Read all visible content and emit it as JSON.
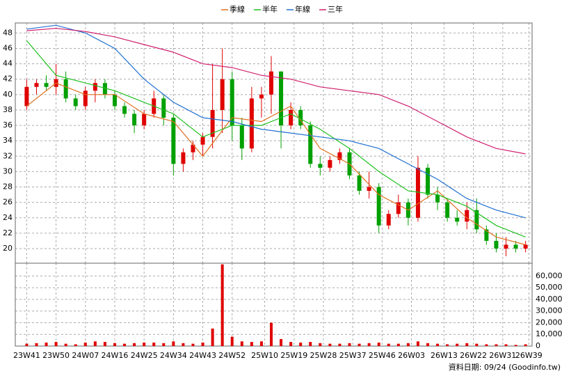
{
  "chart_data": [
    {
      "type": "candlestick",
      "x": [
        0,
        3,
        6,
        9,
        12,
        15,
        18,
        21,
        24,
        27,
        30,
        33,
        36,
        39,
        42,
        45,
        48,
        51,
        54,
        57,
        60,
        63,
        66,
        69,
        72,
        75,
        78,
        81,
        84,
        87,
        90,
        93,
        96,
        99,
        102,
        105,
        108,
        111,
        114,
        117,
        120,
        123,
        126,
        129,
        132,
        135,
        138,
        141,
        144,
        147,
        150,
        153
      ],
      "open": [
        38.5,
        41,
        41.5,
        41,
        42,
        39.5,
        38.5,
        40.5,
        41.5,
        40,
        38.5,
        37.5,
        36,
        37.5,
        39.5,
        37,
        31,
        32.5,
        33.5,
        34.5,
        38,
        42,
        36,
        33,
        39.5,
        40,
        43,
        36,
        38,
        36,
        31,
        30.5,
        31.5,
        32.5,
        29.5,
        27.5,
        28,
        23,
        24.5,
        26,
        24,
        30.5,
        27,
        26,
        24,
        23.5,
        25,
        22.5,
        21,
        20,
        20.5,
        20
      ],
      "high": [
        42,
        42,
        42.5,
        44,
        43,
        40,
        41,
        42,
        42,
        40.5,
        39,
        38,
        38,
        40.5,
        40,
        37.5,
        33,
        34,
        35,
        44,
        46,
        43,
        37,
        41,
        41,
        45,
        43,
        39,
        38.5,
        36.5,
        32,
        32,
        33,
        33,
        30,
        30,
        28.5,
        25,
        27,
        26.5,
        32,
        31,
        28,
        26.5,
        25,
        26,
        26.5,
        23,
        22,
        21.5,
        21,
        21
      ],
      "low": [
        38,
        40,
        40.5,
        40,
        39,
        38,
        38,
        39,
        39.5,
        38,
        37,
        35,
        35.5,
        37,
        36,
        29.5,
        30,
        31.5,
        32,
        33,
        35,
        34,
        31.5,
        32.5,
        37,
        37.5,
        33,
        35.5,
        35.5,
        30.5,
        29.5,
        30,
        31,
        29,
        27,
        26.5,
        22,
        22.5,
        24,
        23,
        23.5,
        26.5,
        25,
        23.5,
        23,
        22.5,
        22,
        20.5,
        19.5,
        19,
        19.5,
        19.5
      ],
      "close": [
        41,
        41.5,
        41,
        42,
        39.5,
        38.5,
        40.5,
        41.5,
        40,
        38.5,
        37.5,
        36,
        37.5,
        39.5,
        37,
        31,
        32.5,
        33.5,
        34.5,
        38,
        42,
        36,
        33,
        39.5,
        40,
        43,
        36,
        38,
        36,
        31,
        30.5,
        31.5,
        32.5,
        29.5,
        27.5,
        28,
        23,
        24.5,
        26,
        24,
        30.5,
        27,
        26,
        24,
        23.5,
        25,
        22.5,
        21,
        20,
        20.5,
        20,
        20.5
      ],
      "up_color": "#e00000",
      "down_color": "#00a000",
      "series": [
        {
          "name": "季線",
          "color": "#e07020",
          "x": [
            0,
            9,
            18,
            27,
            36,
            45,
            54,
            63,
            72,
            81,
            90,
            99,
            108,
            117,
            126,
            135,
            144,
            153
          ],
          "values": [
            38.5,
            41.5,
            40,
            40,
            37.5,
            36.5,
            32,
            37,
            36.5,
            38.5,
            33,
            31,
            27,
            25,
            27.5,
            24,
            21.5,
            20.5
          ]
        },
        {
          "name": "半年",
          "color": "#20c020",
          "x": [
            0,
            9,
            18,
            27,
            36,
            45,
            54,
            63,
            72,
            81,
            90,
            99,
            108,
            117,
            126,
            135,
            144,
            153
          ],
          "values": [
            47,
            42.5,
            41.5,
            40.5,
            39,
            37.5,
            34.5,
            36,
            36,
            37.5,
            35.5,
            33,
            30,
            27.5,
            27,
            25.5,
            23,
            21.5
          ]
        },
        {
          "name": "年線",
          "color": "#2070d0",
          "x": [
            0,
            9,
            18,
            27,
            36,
            45,
            54,
            63,
            72,
            81,
            90,
            99,
            108,
            117,
            126,
            135,
            144,
            153
          ],
          "values": [
            48.5,
            49,
            48,
            46,
            42,
            39,
            37,
            36.5,
            35.5,
            35,
            34.5,
            34,
            33,
            31,
            29,
            26.5,
            25,
            24
          ]
        },
        {
          "name": "三年",
          "color": "#d02070",
          "x": [
            0,
            9,
            18,
            27,
            36,
            45,
            54,
            63,
            72,
            81,
            90,
            99,
            108,
            117,
            126,
            135,
            144,
            153
          ],
          "values": [
            48.3,
            48.6,
            48.2,
            47.5,
            46.5,
            45.5,
            44,
            43.5,
            42.5,
            42,
            41,
            40.5,
            40,
            38.5,
            36.5,
            34.5,
            33,
            32.3
          ]
        }
      ],
      "xlim": [
        -3.5,
        155
      ],
      "ylim": [
        18.1,
        49.3
      ],
      "yticks": [
        20,
        22,
        24,
        26,
        28,
        30,
        32,
        34,
        36,
        38,
        40,
        42,
        44,
        46,
        48
      ],
      "grid": true
    },
    {
      "type": "bar",
      "x": [
        0,
        3,
        6,
        9,
        12,
        15,
        18,
        21,
        24,
        27,
        30,
        33,
        36,
        39,
        42,
        45,
        48,
        51,
        54,
        57,
        60,
        63,
        66,
        69,
        72,
        75,
        78,
        81,
        84,
        87,
        90,
        93,
        96,
        99,
        102,
        105,
        108,
        111,
        114,
        117,
        120,
        123,
        126,
        129,
        132,
        135,
        138,
        141,
        144,
        147,
        150,
        153
      ],
      "values": [
        2000,
        2500,
        3000,
        3500,
        2000,
        1500,
        3000,
        4000,
        3500,
        2500,
        2000,
        2500,
        3000,
        3000,
        2500,
        4000,
        2500,
        2000,
        3000,
        15000,
        70000,
        8000,
        4000,
        3500,
        4000,
        20000,
        6000,
        3500,
        3000,
        3500,
        2500,
        2000,
        2000,
        2500,
        2000,
        2500,
        3000,
        2000,
        2000,
        2500,
        4000,
        2500,
        2000,
        1500,
        2000,
        2500,
        2000,
        1500,
        1500,
        1500,
        1000,
        1500
      ],
      "color": "#e00000",
      "xlim": [
        -3.5,
        155
      ],
      "xticks": [
        {
          "value": 0,
          "label": "23W41"
        },
        {
          "value": 9,
          "label": "23W50"
        },
        {
          "value": 18,
          "label": "24W07"
        },
        {
          "value": 27,
          "label": "24W16"
        },
        {
          "value": 36,
          "label": "24W25"
        },
        {
          "value": 45,
          "label": "24W34"
        },
        {
          "value": 54,
          "label": "24W43"
        },
        {
          "value": 63,
          "label": "24W52"
        },
        {
          "value": 73,
          "label": "25W10"
        },
        {
          "value": 82,
          "label": "25W19"
        },
        {
          "value": 91,
          "label": "25W28"
        },
        {
          "value": 100,
          "label": "25W37"
        },
        {
          "value": 109,
          "label": "25W46"
        },
        {
          "value": 118,
          "label": "26W03"
        },
        {
          "value": 128,
          "label": "26W13"
        },
        {
          "value": 137,
          "label": "26W22"
        },
        {
          "value": 146,
          "label": "26W31"
        },
        {
          "value": 154,
          "label": "26W39"
        }
      ],
      "ylim": [
        0,
        71000
      ],
      "yticks": [
        0,
        {
          "value": 10000,
          "label": "10,000"
        },
        {
          "value": 20000,
          "label": "20,000"
        },
        {
          "value": 30000,
          "label": "30,000"
        },
        {
          "value": 40000,
          "label": "40,000"
        },
        {
          "value": 50000,
          "label": "50,000"
        },
        {
          "value": 60000,
          "label": "60,000"
        }
      ],
      "grid": true,
      "footnote": "資料日期: 09/24 (Goodinfo.tw)"
    }
  ]
}
